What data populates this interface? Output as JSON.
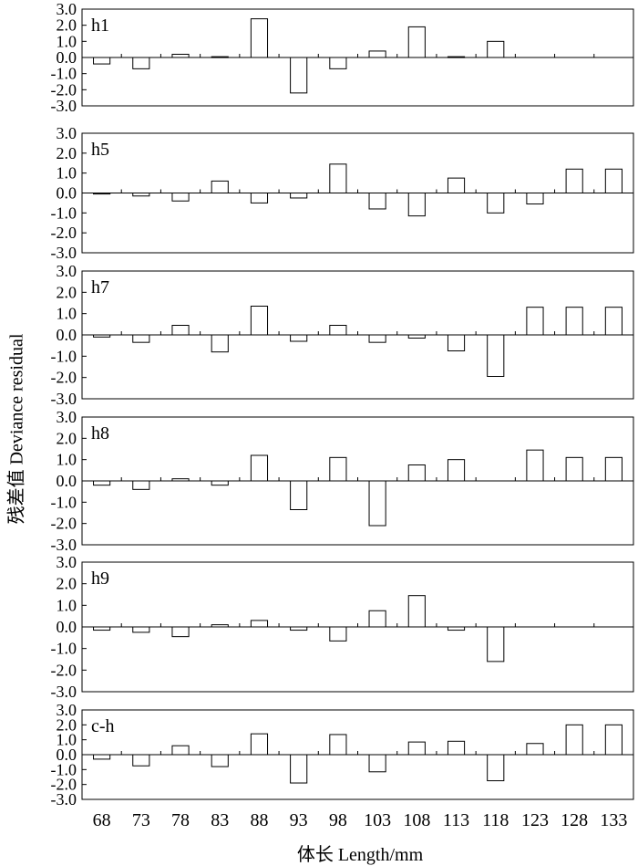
{
  "chart_data": {
    "type": "bar",
    "xlabel": "体长 Length/mm",
    "ylabel": "残差值 Deviance residual",
    "categories": [
      "68",
      "73",
      "78",
      "83",
      "88",
      "93",
      "98",
      "103",
      "108",
      "113",
      "118",
      "123",
      "128",
      "133"
    ],
    "ylim": [
      -3.0,
      3.0
    ],
    "yticks": [
      "3.0",
      "2.0",
      "1.0",
      "0.0",
      "-1.0",
      "-2.0",
      "-3.0"
    ],
    "grid": false,
    "panels": [
      {
        "label": "h1",
        "values": [
          -0.4,
          -0.7,
          0.2,
          0.05,
          2.4,
          -2.2,
          -0.7,
          0.4,
          1.9,
          0.05,
          1.0,
          null,
          null,
          null
        ]
      },
      {
        "label": "h5",
        "values": [
          -0.05,
          -0.15,
          -0.4,
          0.6,
          -0.5,
          -0.25,
          1.45,
          -0.8,
          -1.15,
          0.75,
          -1.0,
          -0.55,
          1.2,
          1.2
        ]
      },
      {
        "label": "h7",
        "values": [
          -0.1,
          -0.35,
          0.45,
          -0.8,
          1.35,
          -0.3,
          0.45,
          -0.35,
          -0.15,
          -0.75,
          -1.95,
          1.3,
          1.3,
          1.3
        ]
      },
      {
        "label": "h8",
        "values": [
          -0.2,
          -0.4,
          0.1,
          -0.2,
          1.2,
          -1.35,
          1.1,
          -2.1,
          0.75,
          1.0,
          null,
          1.45,
          1.1,
          1.1
        ]
      },
      {
        "label": "h9",
        "values": [
          -0.15,
          -0.25,
          -0.45,
          0.1,
          0.3,
          -0.15,
          -0.65,
          0.75,
          1.45,
          -0.15,
          -1.6,
          null,
          null,
          null
        ]
      },
      {
        "label": "c-h",
        "values": [
          -0.3,
          -0.75,
          0.6,
          -0.8,
          1.4,
          -1.9,
          1.35,
          -1.15,
          0.85,
          0.9,
          -1.75,
          0.75,
          2.0,
          2.0
        ]
      }
    ]
  }
}
